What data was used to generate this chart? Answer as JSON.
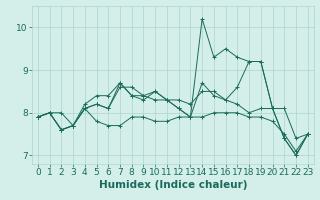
{
  "xlabel": "Humidex (Indice chaleur)",
  "background_color": "#d4eeea",
  "grid_color": "#aed4cc",
  "line_color": "#1a6b5a",
  "x": [
    0,
    1,
    2,
    3,
    4,
    5,
    6,
    7,
    8,
    9,
    10,
    11,
    12,
    13,
    14,
    15,
    16,
    17,
    18,
    19,
    20,
    21,
    22,
    23
  ],
  "series": [
    [
      7.9,
      8.0,
      8.0,
      7.7,
      8.1,
      8.2,
      8.1,
      8.6,
      8.6,
      8.4,
      8.3,
      8.3,
      8.3,
      8.2,
      8.5,
      8.5,
      8.3,
      8.2,
      8.0,
      8.1,
      8.1,
      8.1,
      7.4,
      7.5
    ],
    [
      7.9,
      8.0,
      7.6,
      7.7,
      8.1,
      7.8,
      7.7,
      7.7,
      7.9,
      7.9,
      7.8,
      7.8,
      7.9,
      7.9,
      7.9,
      8.0,
      8.0,
      8.0,
      7.9,
      7.9,
      7.8,
      7.5,
      7.1,
      7.5
    ],
    [
      7.9,
      8.0,
      7.6,
      7.7,
      8.2,
      8.4,
      8.4,
      8.7,
      8.4,
      8.3,
      8.5,
      8.3,
      8.1,
      7.9,
      10.2,
      9.3,
      9.5,
      9.3,
      9.2,
      9.2,
      8.1,
      7.4,
      7.0,
      7.5
    ],
    [
      7.9,
      8.0,
      7.6,
      7.7,
      8.1,
      8.2,
      8.1,
      8.7,
      8.4,
      8.4,
      8.5,
      8.3,
      8.1,
      7.9,
      8.7,
      8.4,
      8.3,
      8.6,
      9.2,
      9.2,
      8.1,
      7.4,
      7.0,
      7.5
    ]
  ],
  "ylim": [
    6.8,
    10.5
  ],
  "yticks": [
    7,
    8,
    9,
    10
  ],
  "xticks": [
    0,
    1,
    2,
    3,
    4,
    5,
    6,
    7,
    8,
    9,
    10,
    11,
    12,
    13,
    14,
    15,
    16,
    17,
    18,
    19,
    20,
    21,
    22,
    23
  ],
  "tick_fontsize": 6.5,
  "label_fontsize": 7.5
}
